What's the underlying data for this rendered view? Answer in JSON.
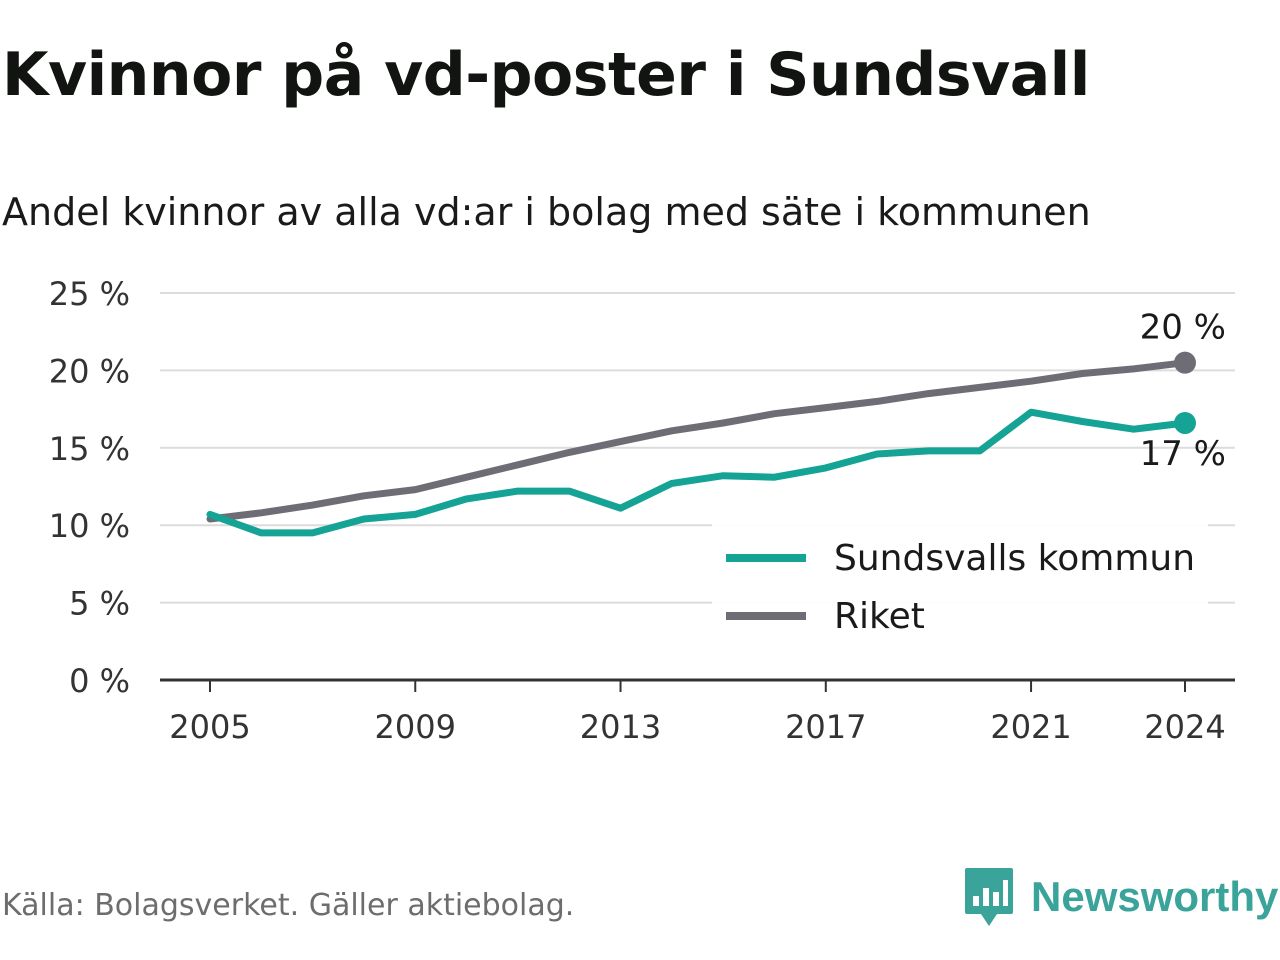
{
  "title": "Kvinnor på vd-poster i Sundsvall",
  "subtitle": "Andel kvinnor av alla vd:ar i bolag med säte i kommunen",
  "source": "Källa: Bolagsverket. Gäller aktiebolag.",
  "brand": {
    "name": "Newsworthy",
    "icon": "newsworthy-logo-icon",
    "color": "#3aa39a"
  },
  "chart_data": {
    "type": "line",
    "x": [
      2005,
      2006,
      2007,
      2008,
      2009,
      2010,
      2011,
      2012,
      2013,
      2014,
      2015,
      2016,
      2017,
      2018,
      2019,
      2020,
      2021,
      2022,
      2023,
      2024
    ],
    "x_ticks": [
      2005,
      2009,
      2013,
      2017,
      2021,
      2024
    ],
    "y_ticks": [
      0,
      5,
      10,
      15,
      20,
      25
    ],
    "y_tick_labels": [
      "0 %",
      "5 %",
      "10 %",
      "15 %",
      "20 %",
      "25 %"
    ],
    "ylim": [
      0,
      25
    ],
    "grid": true,
    "legend_position": "bottom-right",
    "series": [
      {
        "name": "Sundsvalls kommun",
        "color": "#14a394",
        "values": [
          10.7,
          9.5,
          9.5,
          10.4,
          10.7,
          11.7,
          12.2,
          12.2,
          11.1,
          12.7,
          13.2,
          13.1,
          13.7,
          14.6,
          14.8,
          14.8,
          17.3,
          16.7,
          16.2,
          16.6
        ],
        "end_label": "17 %"
      },
      {
        "name": "Riket",
        "color": "#6e6d75",
        "values": [
          10.4,
          10.8,
          11.3,
          11.9,
          12.3,
          13.1,
          13.9,
          14.7,
          15.4,
          16.1,
          16.6,
          17.2,
          17.6,
          18.0,
          18.5,
          18.9,
          19.3,
          19.8,
          20.1,
          20.5
        ],
        "end_label": "20 %"
      }
    ]
  }
}
